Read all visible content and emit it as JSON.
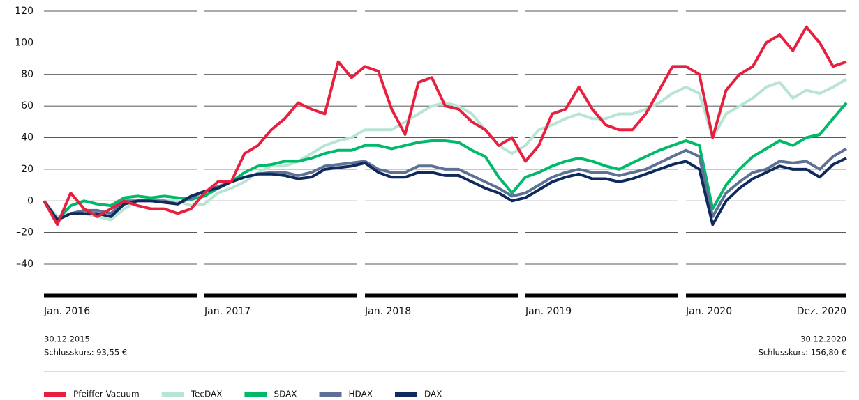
{
  "chart_data": {
    "type": "line",
    "x": [
      0,
      1,
      2,
      3,
      4,
      5,
      6,
      7,
      8,
      9,
      10,
      11,
      12,
      13,
      14,
      15,
      16,
      17,
      18,
      19,
      20,
      21,
      22,
      23,
      24,
      25,
      26,
      27,
      28,
      29,
      30,
      31,
      32,
      33,
      34,
      35,
      36,
      37,
      38,
      39,
      40,
      41,
      42,
      43,
      44,
      45,
      46,
      47,
      48,
      49,
      50,
      51,
      52,
      53,
      54,
      55,
      56,
      57,
      58,
      59,
      60
    ],
    "xlim": [
      0,
      60
    ],
    "xticks": [
      {
        "value": 0,
        "label": "Jan. 2016"
      },
      {
        "value": 12,
        "label": "Jan. 2017"
      },
      {
        "value": 24,
        "label": "Jan. 2018"
      },
      {
        "value": 36,
        "label": "Jan. 2019"
      },
      {
        "value": 48,
        "label": "Jan. 2020"
      },
      {
        "value": 60,
        "label": "Dez. 2020"
      }
    ],
    "ylim": [
      -40,
      120
    ],
    "yticks": [
      {
        "value": -40,
        "label": "–40"
      },
      {
        "value": -20,
        "label": "–20"
      },
      0,
      20,
      40,
      60,
      80,
      100,
      120
    ],
    "grid": true,
    "annotations": {
      "start_date": "30.12.2015",
      "start_price": "Schlusskurs: 93,55 €",
      "end_date": "30.12.2020",
      "end_price": "Schlusskurs: 156,80 €"
    },
    "series": [
      {
        "name": "Pfeiffer Vacuum",
        "color": "#e8203f",
        "values": [
          0,
          -15,
          5,
          -5,
          -10,
          -5,
          0,
          -3,
          -5,
          -5,
          -8,
          -5,
          5,
          12,
          12,
          30,
          35,
          45,
          52,
          62,
          58,
          55,
          88,
          78,
          85,
          82,
          58,
          42,
          75,
          78,
          60,
          58,
          50,
          45,
          35,
          40,
          25,
          35,
          55,
          58,
          72,
          58,
          48,
          45,
          45,
          55,
          70,
          85,
          85,
          80,
          40,
          70,
          80,
          85,
          100,
          105,
          95,
          110,
          100,
          85,
          88
        ]
      },
      {
        "name": "TecDAX",
        "color": "#b7e4d3",
        "values": [
          0,
          -10,
          -8,
          -8,
          -10,
          -12,
          -5,
          0,
          0,
          0,
          0,
          -3,
          -2,
          5,
          8,
          12,
          18,
          22,
          22,
          25,
          30,
          35,
          38,
          40,
          45,
          45,
          45,
          50,
          55,
          60,
          62,
          60,
          55,
          45,
          35,
          30,
          35,
          45,
          48,
          52,
          55,
          52,
          52,
          55,
          55,
          58,
          62,
          68,
          72,
          68,
          40,
          55,
          60,
          65,
          72,
          75,
          65,
          70,
          68,
          72,
          77
        ]
      },
      {
        "name": "SDAX",
        "color": "#00b96b",
        "values": [
          0,
          -12,
          -3,
          0,
          -2,
          -3,
          2,
          3,
          2,
          3,
          2,
          1,
          3,
          8,
          12,
          18,
          22,
          23,
          25,
          25,
          27,
          30,
          32,
          32,
          35,
          35,
          33,
          35,
          37,
          38,
          38,
          37,
          32,
          28,
          15,
          5,
          15,
          18,
          22,
          25,
          27,
          25,
          22,
          20,
          24,
          28,
          32,
          35,
          38,
          35,
          -5,
          10,
          20,
          28,
          33,
          38,
          35,
          40,
          42,
          52,
          62
        ]
      },
      {
        "name": "HDAX",
        "color": "#5d7095",
        "values": [
          0,
          -12,
          -8,
          -6,
          -6,
          -8,
          0,
          0,
          0,
          0,
          -2,
          2,
          6,
          9,
          12,
          15,
          17,
          18,
          18,
          16,
          18,
          22,
          23,
          24,
          25,
          20,
          18,
          18,
          22,
          22,
          20,
          20,
          16,
          12,
          8,
          3,
          5,
          10,
          15,
          18,
          20,
          18,
          18,
          16,
          18,
          20,
          24,
          28,
          32,
          28,
          -10,
          5,
          12,
          18,
          20,
          25,
          24,
          25,
          20,
          28,
          33
        ]
      },
      {
        "name": "DAX",
        "color": "#0f2a5c",
        "values": [
          0,
          -12,
          -8,
          -8,
          -8,
          -10,
          -2,
          0,
          0,
          -1,
          -2,
          3,
          6,
          8,
          12,
          15,
          17,
          17,
          16,
          14,
          15,
          20,
          21,
          22,
          24,
          18,
          15,
          15,
          18,
          18,
          16,
          16,
          12,
          8,
          5,
          0,
          2,
          7,
          12,
          15,
          17,
          14,
          14,
          12,
          14,
          17,
          20,
          23,
          25,
          20,
          -15,
          0,
          8,
          14,
          18,
          22,
          20,
          20,
          15,
          23,
          27
        ]
      }
    ],
    "draw_order": [
      1,
      2,
      3,
      4,
      0
    ]
  }
}
